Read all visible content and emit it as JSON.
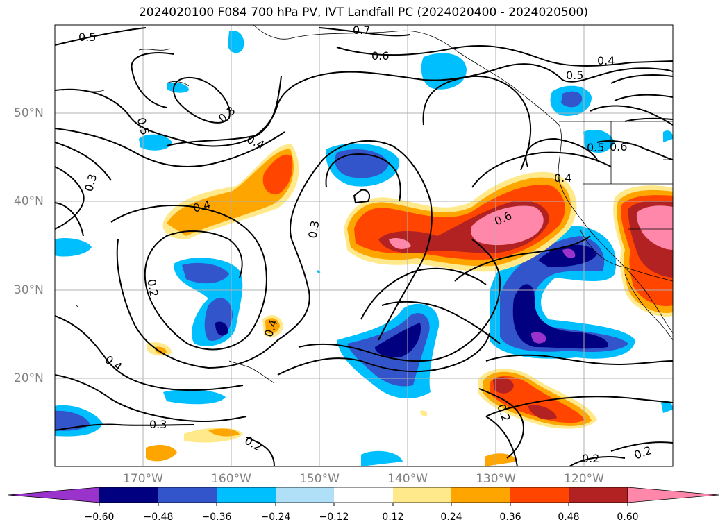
{
  "title": "2024020100 F084 700 hPa PV, IVT Landfall PC (2024020400 - 2024020500)",
  "map": {
    "lat_labels": [
      "50°N",
      "40°N",
      "30°N",
      "20°N"
    ],
    "lon_labels": [
      "170°W",
      "160°W",
      "150°W",
      "140°W",
      "130°W",
      "120°W"
    ],
    "contour_labels": [
      "0.5",
      "0.7",
      "0.6",
      "0.4",
      "0.5",
      "0.3",
      "0.5",
      "0.4",
      "0.3",
      "0.4",
      "0.3",
      "0.6",
      "0.2",
      "0.4",
      "0.4",
      "0.4",
      "0.3",
      "0.5",
      "0.6",
      "0.2",
      "0.2",
      "0.2",
      "0.2"
    ]
  },
  "colorbar": {
    "tick_labels": [
      "−0.60",
      "−0.48",
      "−0.36",
      "−0.24",
      "−0.12",
      "0.12",
      "0.24",
      "0.36",
      "0.48",
      "0.60"
    ],
    "colors": [
      "#9933cc",
      "#000080",
      "#3355cc",
      "#00bfff",
      "#b0e0f8",
      "#ffffff",
      "#ffe98a",
      "#ffa500",
      "#ff4500",
      "#b22222",
      "#ff88aa"
    ]
  }
}
